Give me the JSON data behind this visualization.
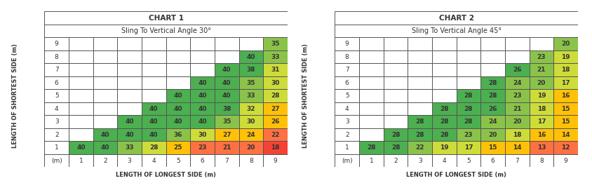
{
  "chart1_title": "CHART 1",
  "chart1_subtitle": "Sling To Vertical Angle 30°",
  "chart2_title": "CHART 2",
  "chart2_subtitle": "Sling To Vertical Angle 45°",
  "xlabel": "LENGTH OF LONGEST SIDE (m)",
  "ylabel": "LENGTH OF SHORTEST SIDE (m)",
  "rows": [
    9,
    8,
    7,
    6,
    5,
    4,
    3,
    2,
    1
  ],
  "cols": [
    1,
    2,
    3,
    4,
    5,
    6,
    7,
    8,
    9
  ],
  "chart1_data": [
    [
      null,
      null,
      null,
      null,
      null,
      null,
      null,
      null,
      35
    ],
    [
      null,
      null,
      null,
      null,
      null,
      null,
      null,
      40,
      33
    ],
    [
      null,
      null,
      null,
      null,
      null,
      null,
      40,
      38,
      31
    ],
    [
      null,
      null,
      null,
      null,
      null,
      40,
      40,
      35,
      30
    ],
    [
      null,
      null,
      null,
      null,
      40,
      40,
      40,
      33,
      28
    ],
    [
      null,
      null,
      null,
      40,
      40,
      40,
      38,
      32,
      27
    ],
    [
      null,
      null,
      40,
      40,
      40,
      40,
      35,
      30,
      26
    ],
    [
      null,
      40,
      40,
      40,
      36,
      30,
      27,
      24,
      22
    ],
    [
      40,
      40,
      33,
      28,
      25,
      23,
      21,
      20,
      18
    ]
  ],
  "chart2_data": [
    [
      null,
      null,
      null,
      null,
      null,
      null,
      null,
      null,
      20
    ],
    [
      null,
      null,
      null,
      null,
      null,
      null,
      null,
      23,
      19
    ],
    [
      null,
      null,
      null,
      null,
      null,
      null,
      26,
      21,
      18
    ],
    [
      null,
      null,
      null,
      null,
      null,
      28,
      24,
      20,
      17
    ],
    [
      null,
      null,
      null,
      null,
      28,
      28,
      23,
      19,
      16
    ],
    [
      null,
      null,
      null,
      28,
      28,
      26,
      21,
      18,
      15
    ],
    [
      null,
      null,
      28,
      28,
      28,
      24,
      20,
      17,
      15
    ],
    [
      null,
      28,
      28,
      28,
      23,
      20,
      18,
      16,
      14
    ],
    [
      28,
      28,
      22,
      19,
      17,
      15,
      14,
      13,
      12
    ]
  ],
  "color_thresholds_1": [
    {
      "min": 38,
      "max": 999,
      "color": "#4CAF50"
    },
    {
      "min": 33,
      "max": 38,
      "color": "#8BC34A"
    },
    {
      "min": 28,
      "max": 33,
      "color": "#CDDC39"
    },
    {
      "min": 24,
      "max": 28,
      "color": "#FFC107"
    },
    {
      "min": 20,
      "max": 24,
      "color": "#FF7043"
    },
    {
      "min": 0,
      "max": 20,
      "color": "#F44336"
    }
  ],
  "color_thresholds_2": [
    {
      "min": 25,
      "max": 999,
      "color": "#4CAF50"
    },
    {
      "min": 20,
      "max": 25,
      "color": "#8BC34A"
    },
    {
      "min": 17,
      "max": 20,
      "color": "#CDDC39"
    },
    {
      "min": 14,
      "max": 17,
      "color": "#FFC107"
    },
    {
      "min": 12,
      "max": 14,
      "color": "#FF7043"
    },
    {
      "min": 0,
      "max": 12,
      "color": "#F44336"
    }
  ],
  "border_color": "#555555",
  "text_color": "#333333",
  "empty_cell_bg": "#ffffff",
  "title_fontsize": 7.5,
  "subtitle_fontsize": 7,
  "cell_fontsize": 6.5,
  "label_fontsize": 6
}
